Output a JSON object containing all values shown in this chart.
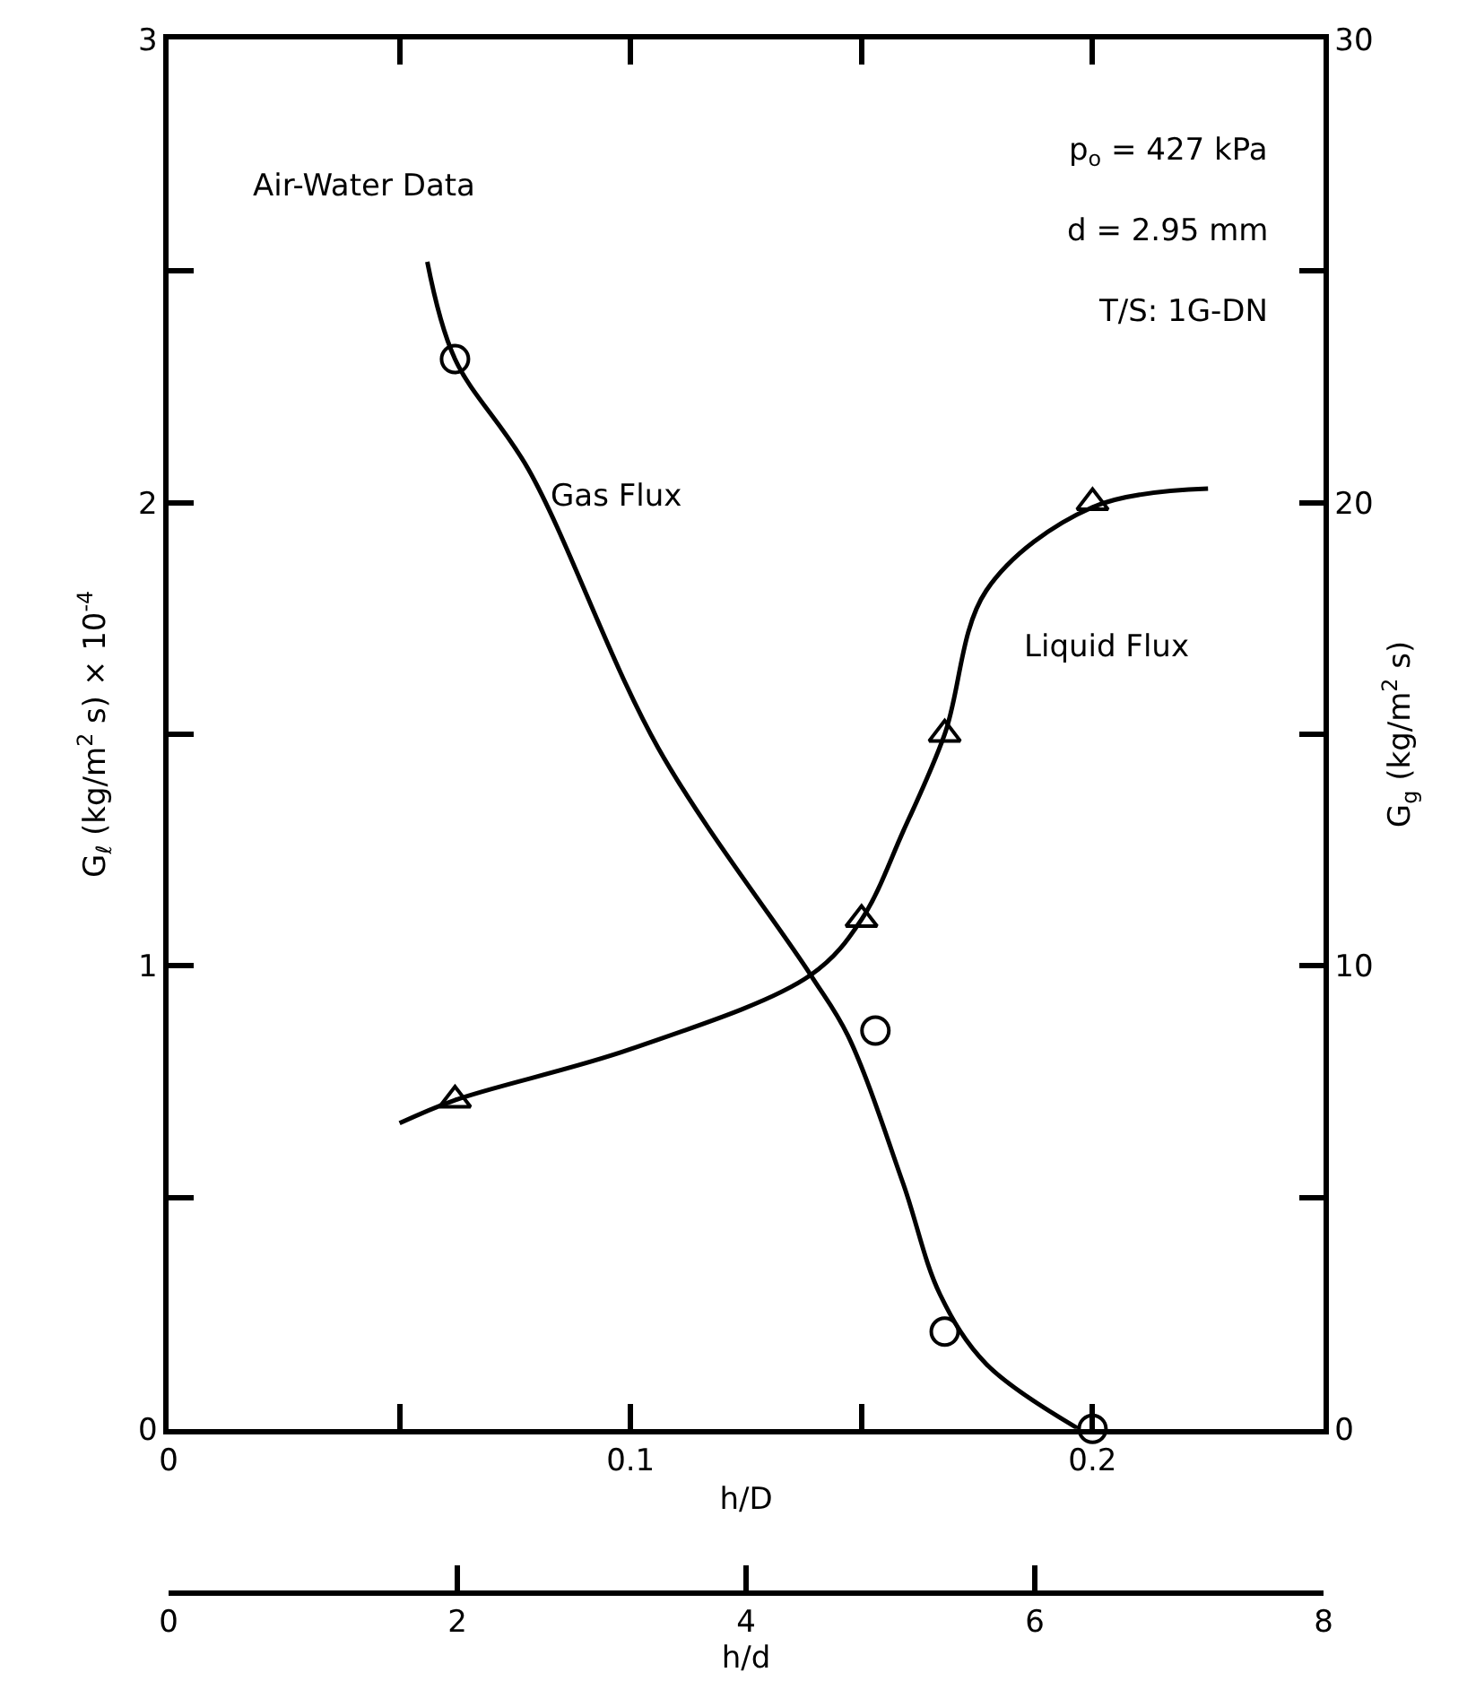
{
  "chart_data": {
    "type": "scatter",
    "xlabel": "h/D",
    "ylabel": "G$_{ℓ}$ (kg/m$^{2}$ s) × 10$^{-4}$",
    "y2label": "G$_{g}$ (kg/m$^{2}$ s)",
    "x2label": "h/d",
    "xlim": [
      0,
      0.25
    ],
    "xticks": [
      0,
      {
        "value": 0.05,
        "label": null
      },
      0.1,
      {
        "value": 0.15,
        "label": null
      },
      0.2
    ],
    "ylim": [
      0,
      3
    ],
    "yticks": [
      0,
      {
        "value": 0.5,
        "label": null
      },
      1,
      {
        "value": 1.5,
        "label": null
      },
      2,
      {
        "value": 2.5,
        "label": null
      },
      3
    ],
    "y2lim": [
      0,
      30
    ],
    "y2ticks": [
      0,
      {
        "value": 5,
        "label": null
      },
      10,
      {
        "value": 15,
        "label": null
      },
      20,
      {
        "value": 25,
        "label": null
      },
      30
    ],
    "x2lim": [
      0,
      8
    ],
    "x2ticks": [
      0,
      2,
      4,
      6,
      8
    ],
    "grid": false,
    "series": [
      {
        "type": "line",
        "axis": "y",
        "color": "#000000",
        "marker": "none",
        "x": [
          0.05,
          0.062,
          0.1,
          0.139,
          0.15,
          0.159,
          0.168,
          0.177,
          0.2,
          0.225
        ],
        "values": [
          0.66,
          0.71,
          0.82,
          0.98,
          1.1,
          1.29,
          1.5,
          1.81,
          1.99,
          2.03
        ]
      },
      {
        "axis": "y",
        "color": "#000000",
        "marker": "triangle",
        "x": [
          0.062,
          0.15,
          0.168,
          0.2
        ],
        "values": [
          0.71,
          1.1,
          1.5,
          2.0
        ]
      },
      {
        "type": "line",
        "axis": "y2",
        "color": "#000000",
        "marker": "none",
        "x": [
          0.056,
          0.062,
          0.078,
          0.106,
          0.139,
          0.147,
          0.159,
          0.167,
          0.177,
          0.197
        ],
        "values": [
          25.2,
          23.1,
          20.7,
          14.7,
          9.8,
          8.5,
          5.3,
          2.9,
          1.4,
          0
        ]
      },
      {
        "axis": "y2",
        "color": "#000000",
        "marker": "circle",
        "x": [
          0.062,
          0.153,
          0.168,
          0.2
        ],
        "values": [
          23.1,
          8.6,
          2.1,
          0
        ]
      }
    ],
    "annotations": [
      "Air-Water Data",
      "p$_{o}$ = 427 kPa",
      "d = 2.95 mm",
      "T/S: 1G-DN",
      "Gas Flux",
      "Liquid Flux"
    ]
  }
}
